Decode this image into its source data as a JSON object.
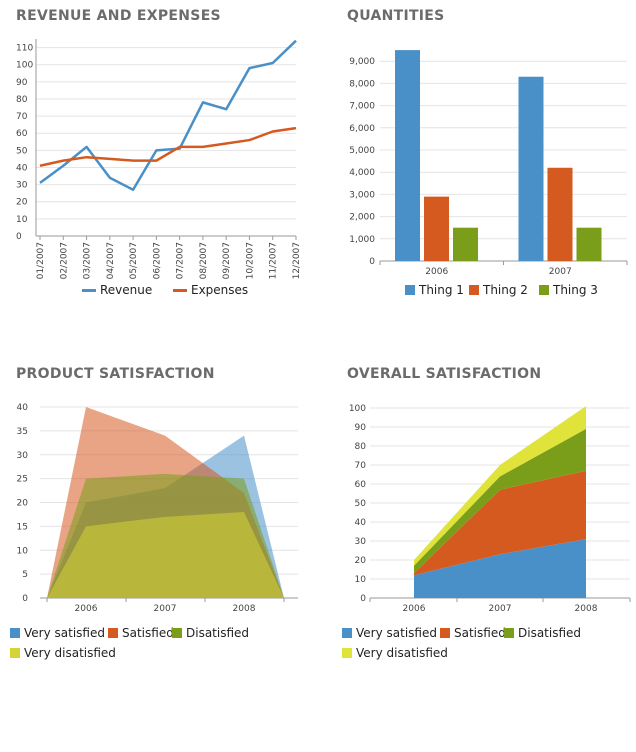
{
  "chart_data": [
    {
      "id": "revenue",
      "type": "line",
      "title": "REVENUE AND EXPENSES",
      "categories": [
        "01/2007",
        "02/2007",
        "03/2007",
        "04/2007",
        "05/2007",
        "06/2007",
        "07/2007",
        "08/2007",
        "09/2007",
        "10/2007",
        "11/2007",
        "12/2007"
      ],
      "series": [
        {
          "name": "Revenue",
          "color": "#4a90c8",
          "values": [
            31,
            41,
            52,
            34,
            27,
            50,
            51,
            78,
            74,
            98,
            101,
            114
          ]
        },
        {
          "name": "Expenses",
          "color": "#d55a20",
          "values": [
            41,
            44,
            46,
            45,
            44,
            44,
            52,
            52,
            54,
            56,
            61,
            63
          ]
        }
      ],
      "ylim": [
        0,
        115
      ],
      "yticks": [
        0,
        10,
        20,
        30,
        40,
        50,
        60,
        70,
        80,
        90,
        100,
        110
      ],
      "grid": true,
      "legend": "bottom"
    },
    {
      "id": "quantities",
      "type": "bar",
      "title": "QUANTITIES",
      "categories": [
        "2006",
        "2007"
      ],
      "series": [
        {
          "name": "Thing 1",
          "color": "#4a90c8",
          "values": [
            9500,
            8300
          ]
        },
        {
          "name": "Thing 2",
          "color": "#d55a20",
          "values": [
            2900,
            4200
          ]
        },
        {
          "name": "Thing 3",
          "color": "#7a9e1a",
          "values": [
            1500,
            1500
          ]
        }
      ],
      "ylim": [
        0,
        10000
      ],
      "yticks": [
        0,
        1000,
        2000,
        3000,
        4000,
        5000,
        6000,
        7000,
        8000,
        9000
      ],
      "yticklabels": [
        "0",
        "1,000",
        "2,000",
        "3,000",
        "4,000",
        "5,000",
        "6,000",
        "7,000",
        "8,000",
        "9,000"
      ],
      "grid": true,
      "legend": "bottom"
    },
    {
      "id": "product",
      "type": "area",
      "title": "PRODUCT SATISFACTION",
      "categories": [
        "2006",
        "2007",
        "2008"
      ],
      "series": [
        {
          "name": "Very satisfied",
          "color": "#4a90c8",
          "values": [
            20,
            23,
            34
          ]
        },
        {
          "name": "Satisfied",
          "color": "#d55a20",
          "values": [
            40,
            34,
            22
          ]
        },
        {
          "name": "Disatisfied",
          "color": "#7a9e1a",
          "values": [
            25,
            26,
            25
          ]
        },
        {
          "name": "Very disatisfied",
          "color": "#d4d435",
          "values": [
            15,
            17,
            18
          ]
        }
      ],
      "stacked": false,
      "ylim": [
        0,
        40
      ],
      "yticks": [
        0,
        5,
        10,
        15,
        20,
        25,
        30,
        35,
        40
      ],
      "grid": true,
      "legend": "bottom"
    },
    {
      "id": "overall",
      "type": "area",
      "title": "OVERALL SATISFACTION",
      "categories": [
        "2006",
        "2007",
        "2008"
      ],
      "series": [
        {
          "name": "Very satisfied",
          "color": "#4a90c8",
          "values": [
            12,
            23,
            31
          ]
        },
        {
          "name": "Satisfied",
          "color": "#d55a20",
          "values": [
            1,
            34,
            36
          ]
        },
        {
          "name": "Disatisfied",
          "color": "#7a9e1a",
          "values": [
            4,
            7,
            22
          ]
        },
        {
          "name": "Very disatisfied",
          "color": "#dfe33a",
          "values": [
            3,
            6,
            12
          ]
        }
      ],
      "stacked": true,
      "ylim": [
        0,
        100
      ],
      "yticks": [
        0,
        10,
        20,
        30,
        40,
        50,
        60,
        70,
        80,
        90,
        100
      ],
      "grid": true,
      "legend": "bottom"
    }
  ]
}
